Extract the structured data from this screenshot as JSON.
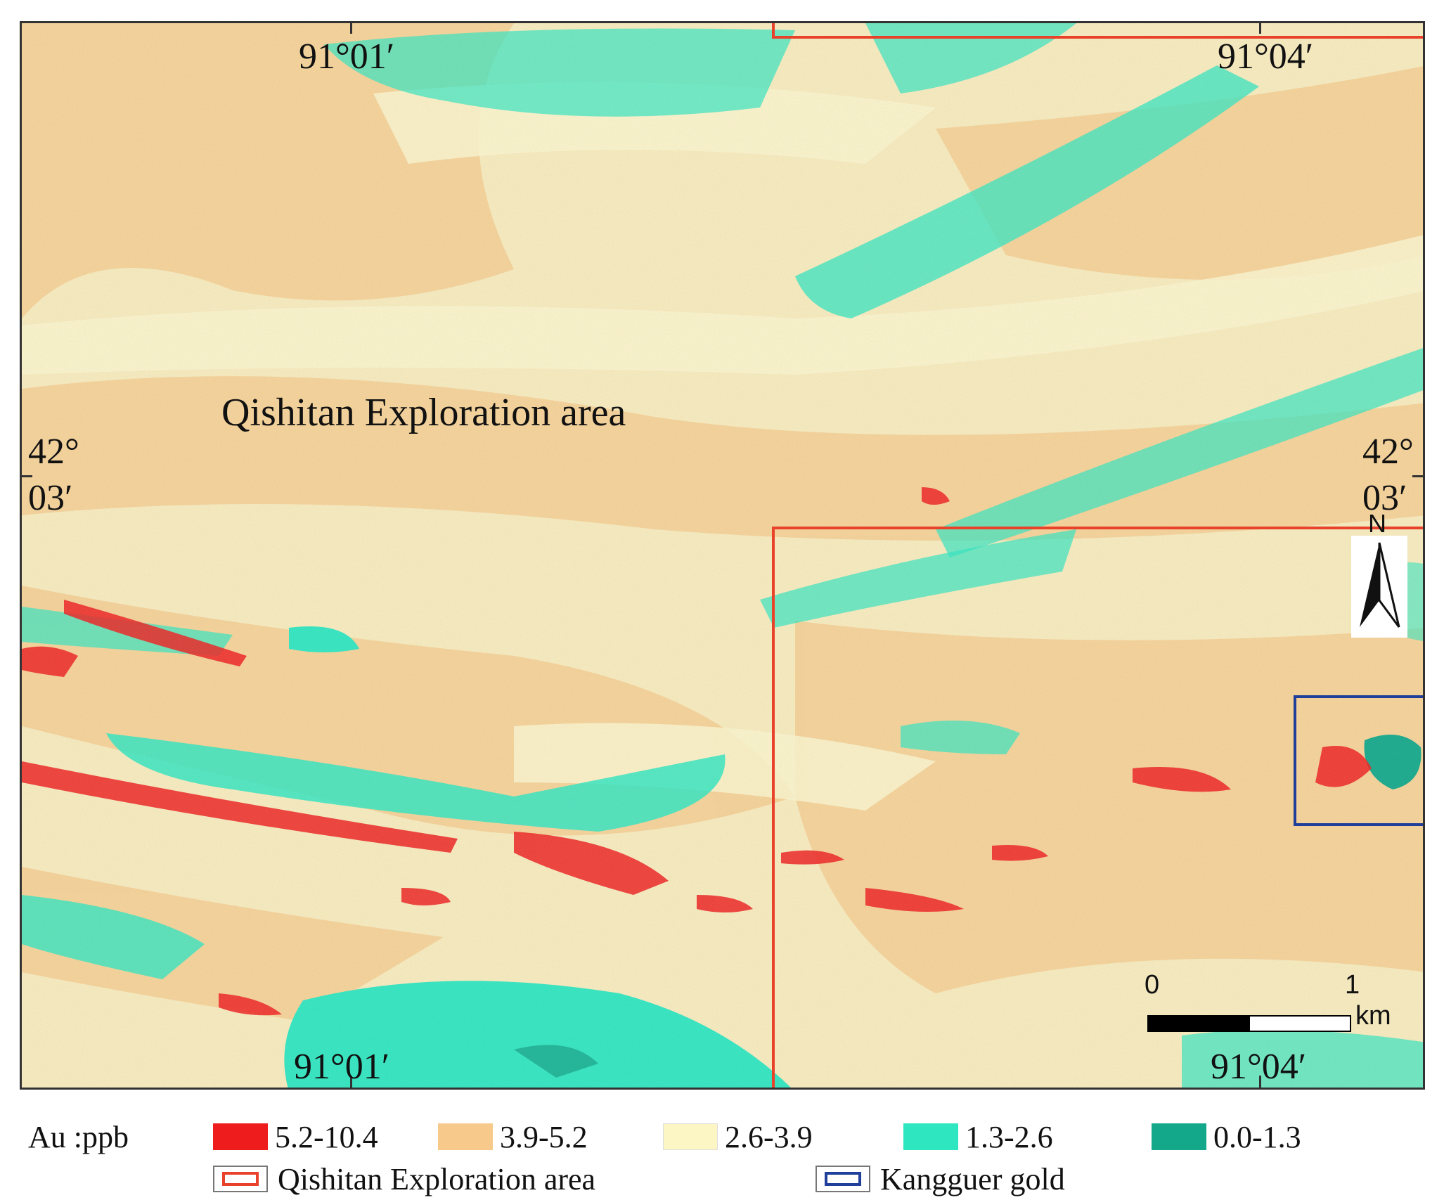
{
  "map": {
    "area_label": "Qishitan Exploration area",
    "coords": {
      "top_left_lon": "91°01′",
      "top_right_lon": "91°04′",
      "bottom_left_lon": "91°01′",
      "bottom_right_lon": "91°04′",
      "left_lat_deg": "42°",
      "left_lat_min": "03′",
      "right_lat_deg": "42°",
      "right_lat_min": "03′"
    },
    "north_label": "N",
    "scale": {
      "start": "0",
      "end": "1",
      "unit": "km"
    },
    "colors": {
      "exploration_border": "#e8432a",
      "gold_border": "#1f3f9a"
    }
  },
  "legend": {
    "title": "Au :ppb",
    "classes": [
      {
        "label": "5.2-10.4",
        "color": "#ee1c1c"
      },
      {
        "label": "3.9-5.2",
        "color": "#f7c98a"
      },
      {
        "label": "2.6-3.9",
        "color": "#fcf5c4"
      },
      {
        "label": "1.3-2.6",
        "color": "#2ee6c0"
      },
      {
        "label": "0.0-1.3",
        "color": "#13a88a"
      }
    ],
    "exploration_area": "Qishitan Exploration area",
    "gold": "Kangguer gold"
  }
}
